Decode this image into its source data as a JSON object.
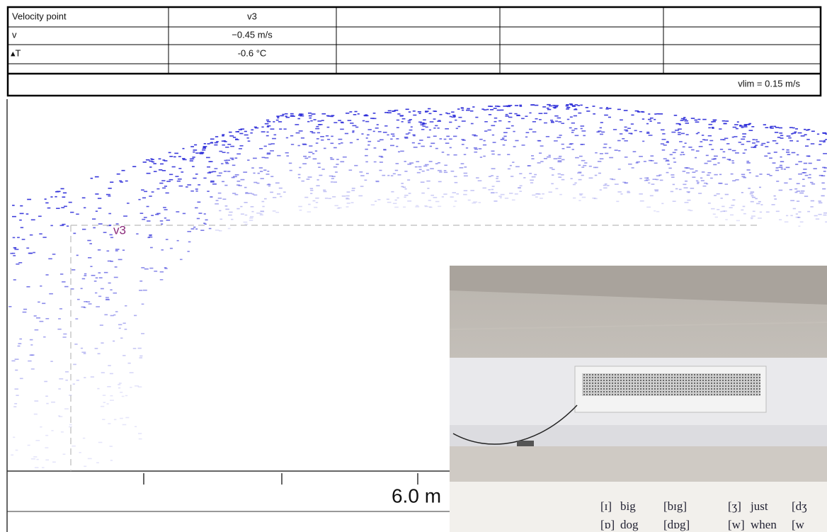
{
  "table": {
    "rows": [
      [
        "Velocity point",
        "v3"
      ],
      [
        "v",
        "−0.45 m/s"
      ],
      [
        "▴T",
        "-0.6 °C"
      ]
    ],
    "footer": "vlim = 0.15 m/s"
  },
  "plot": {
    "point_label": "v3",
    "axis_label": "6.0 m"
  },
  "photo": {
    "chart_lines": [
      [
        "[ɪ]",
        "big",
        "[bɪg]",
        "[ʒ]",
        "just",
        "[dʒ"
      ],
      [
        "[ɒ]",
        "dog",
        "[dɒg]",
        "[w]",
        "when",
        "[w"
      ]
    ]
  }
}
